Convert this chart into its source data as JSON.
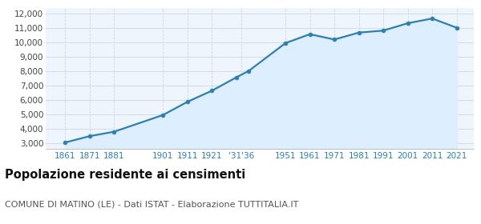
{
  "years": [
    1861,
    1871,
    1881,
    1901,
    1911,
    1921,
    1931,
    1936,
    1951,
    1961,
    1971,
    1981,
    1991,
    2001,
    2011,
    2021
  ],
  "population": [
    3050,
    3490,
    3800,
    4960,
    5880,
    6650,
    7580,
    8020,
    9950,
    10570,
    10200,
    10680,
    10820,
    11330,
    11660,
    11020
  ],
  "x_tick_positions": [
    1861,
    1871,
    1881,
    1901,
    1911,
    1921,
    1933,
    1951,
    1961,
    1971,
    1981,
    1991,
    2001,
    2011,
    2021
  ],
  "x_tick_labels": [
    "1861",
    "1871",
    "1881",
    "1901",
    "1911",
    "1921",
    "'31'36",
    "1951",
    "1961",
    "1971",
    "1981",
    "1991",
    "2001",
    "2011",
    "2021"
  ],
  "line_color": "#2980b9",
  "fill_color": "#ddeeff",
  "marker_color": "#2980b9",
  "grid_color": "#c8d8e8",
  "bg_color": "#ffffff",
  "plot_bg_color": "#eef5fc",
  "title": "Popolazione residente ai censimenti",
  "subtitle": "COMUNE DI MATINO (LE) - Dati ISTAT - Elaborazione TUTTITALIA.IT",
  "ylim": [
    2600,
    12400
  ],
  "yticks": [
    3000,
    4000,
    5000,
    6000,
    7000,
    8000,
    9000,
    10000,
    11000,
    12000
  ],
  "xlim_left": 1853,
  "xlim_right": 2028,
  "title_fontsize": 10.5,
  "subtitle_fontsize": 8.0,
  "tick_fontsize": 7.5
}
